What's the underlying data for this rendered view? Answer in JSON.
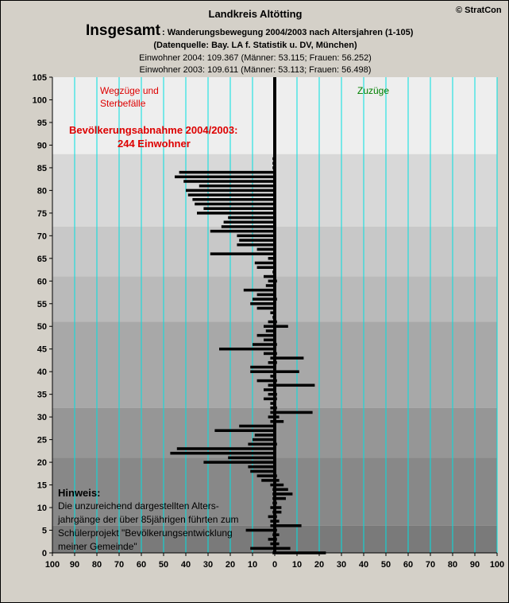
{
  "header": {
    "region_title": "Landkreis Altötting",
    "copyright": "© StratCon",
    "main_title": "Insgesamt",
    "subtitle": ": Wanderungsbewegung 2004/2003 nach Altersjahren (1-105)",
    "source": "(Datenquelle: Bay. LA f. Statistik u. DV, München)",
    "line_2004": "Einwohner 2004: 109.367  (Männer: 53.115; Frauen: 56.252)",
    "line_2003": "Einwohner 2003: 109.611  (Männer: 53.113; Frauen: 56.498)"
  },
  "annotations": {
    "left_label_1": "Wegzüge und",
    "left_label_2": "Sterbefälle",
    "right_label": "Zuzüge",
    "decline_1": "Bevölkerungsabnahme 2004/2003:",
    "decline_2": "244 Einwohner",
    "note_title": "Hinweis:",
    "note_lines": [
      "Die unzureichend dargestellten Alters-",
      "jahrgänge der über 85jährigen führten zum",
      "Schülerprojekt \"Bevölkerungsentwicklung",
      "meiner Gemeinde\""
    ]
  },
  "colors": {
    "background": "#d4d0c8",
    "bar": "#000000",
    "gridline": "#00e0e0",
    "left_label": "#dd0000",
    "right_label": "#008000"
  },
  "chart_data": {
    "type": "bar",
    "orientation": "horizontal",
    "title": "Insgesamt: Wanderungsbewegung 2004/2003 nach Altersjahren (1-105)",
    "xlim": [
      -100,
      100
    ],
    "ylim": [
      0,
      105
    ],
    "x_ticks": [
      -100,
      -90,
      -80,
      -70,
      -60,
      -50,
      -40,
      -30,
      -20,
      -10,
      0,
      10,
      20,
      30,
      40,
      50,
      60,
      70,
      80,
      90,
      100
    ],
    "x_tick_labels": [
      "100",
      "90",
      "80",
      "70",
      "60",
      "50",
      "40",
      "30",
      "20",
      "10",
      "0",
      "10",
      "20",
      "30",
      "40",
      "50",
      "60",
      "70",
      "80",
      "90",
      "100"
    ],
    "y_ticks": [
      0,
      5,
      10,
      15,
      20,
      25,
      30,
      35,
      40,
      45,
      50,
      55,
      60,
      65,
      70,
      75,
      80,
      85,
      90,
      95,
      100,
      105
    ],
    "grid": true,
    "series": [
      {
        "name": "Wegzüge und Sterbefälle",
        "ages": [
          0,
          1,
          2,
          3,
          4,
          5,
          6,
          7,
          8,
          9,
          10,
          11,
          12,
          13,
          14,
          15,
          16,
          17,
          18,
          19,
          20,
          21,
          22,
          23,
          24,
          25,
          26,
          27,
          28,
          29,
          30,
          31,
          32,
          33,
          34,
          35,
          36,
          37,
          38,
          39,
          40,
          41,
          42,
          43,
          44,
          45,
          46,
          47,
          48,
          49,
          50,
          51,
          52,
          53,
          54,
          55,
          56,
          57,
          58,
          59,
          60,
          61,
          62,
          63,
          64,
          65,
          66,
          67,
          68,
          69,
          70,
          71,
          72,
          73,
          74,
          75,
          76,
          77,
          78,
          79,
          80,
          81,
          82,
          83,
          84,
          85,
          86,
          87,
          88,
          89,
          90,
          91,
          92,
          93,
          94,
          95,
          96,
          97,
          98,
          99,
          100,
          101,
          102,
          103,
          104,
          105
        ],
        "values": [
          -1,
          -11,
          -2,
          -3,
          -1,
          -13,
          -2,
          -2,
          -3,
          -1,
          -2,
          -1,
          -1,
          -1,
          -1,
          -2,
          -6,
          -8,
          -11,
          -12,
          -32,
          -21,
          -47,
          -44,
          -12,
          -10,
          -9,
          -27,
          -16,
          -2,
          -3,
          -2,
          -2,
          -2,
          -5,
          -3,
          -5,
          -3,
          -8,
          -2,
          -11,
          -11,
          -3,
          -2,
          -5,
          -25,
          -10,
          -5,
          -8,
          -4,
          -5,
          -3,
          -1,
          -2,
          -8,
          -11,
          -10,
          -8,
          -14,
          -4,
          -3,
          -5,
          -1,
          -8,
          -9,
          -3,
          -29,
          -8,
          -17,
          -16,
          -17,
          -29,
          -24,
          -23,
          -21,
          -35,
          -32,
          -36,
          -37,
          -39,
          -40,
          -34,
          -41,
          -45,
          -43,
          -1,
          -1,
          -1,
          0,
          0,
          0,
          0,
          0,
          0,
          0,
          0,
          0,
          0,
          0,
          0,
          0,
          0,
          0,
          0,
          0,
          0
        ]
      },
      {
        "name": "Zuzüge",
        "ages": [
          0,
          1,
          2,
          3,
          4,
          5,
          6,
          7,
          8,
          9,
          10,
          11,
          12,
          13,
          14,
          15,
          16,
          17,
          18,
          19,
          20,
          21,
          22,
          23,
          24,
          25,
          26,
          27,
          28,
          29,
          30,
          31,
          32,
          33,
          34,
          35,
          36,
          37,
          38,
          39,
          40,
          41,
          42,
          43,
          44,
          45,
          46,
          47,
          48,
          49,
          50,
          51,
          52,
          53,
          54,
          55,
          56,
          57,
          58,
          59,
          60,
          61,
          62,
          63,
          64,
          65,
          66,
          67,
          68,
          69,
          70,
          71,
          72,
          73,
          74,
          75,
          76,
          77,
          78,
          79,
          80,
          81,
          82,
          83,
          84,
          85,
          86,
          87,
          88,
          89,
          90,
          91,
          92,
          93,
          94,
          95,
          96,
          97,
          98,
          99,
          100,
          101,
          102,
          103,
          104,
          105
        ],
        "values": [
          23,
          7,
          2,
          1,
          2,
          1,
          12,
          2,
          1,
          3,
          3,
          1,
          5,
          8,
          6,
          4,
          2,
          1,
          0,
          0,
          0,
          0,
          0,
          0,
          1,
          0,
          0,
          0,
          0,
          4,
          2,
          17,
          1,
          0,
          1,
          1,
          0,
          18,
          1,
          0,
          11,
          0,
          1,
          13,
          1,
          0,
          1,
          0,
          0,
          0,
          6,
          1,
          0,
          0,
          0,
          0,
          1,
          0,
          0,
          0,
          1,
          0,
          0,
          0,
          0,
          0,
          0,
          0,
          0,
          0,
          0,
          0,
          0,
          0,
          0,
          0,
          0,
          0,
          0,
          0,
          0,
          0,
          0,
          0,
          0,
          0,
          0,
          0,
          0,
          0,
          0,
          0,
          0,
          0,
          0,
          0,
          0,
          0,
          0,
          0,
          0,
          0,
          0,
          0,
          0,
          0
        ]
      }
    ]
  }
}
